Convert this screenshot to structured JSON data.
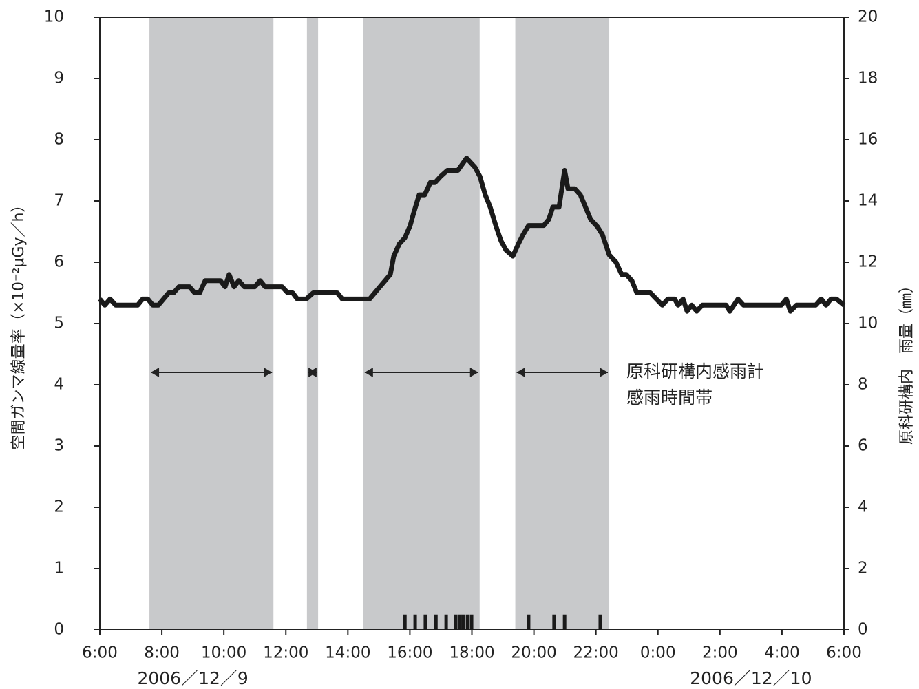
{
  "chart_data": {
    "type": "line",
    "y_label": "空間ガンマ線量率（×10⁻²μGy／h）",
    "y2_label": "原科研構内　雨量（㎜）",
    "annotation": [
      "原科研構内感雨計",
      "感雨時間帯"
    ],
    "date_labels": [
      {
        "x": 9,
        "label": "2006／12／9"
      },
      {
        "x": 27,
        "label": "2006／12／10"
      }
    ],
    "xlim": [
      6,
      30
    ],
    "xticks": [
      {
        "value": 6,
        "label": "6:00"
      },
      {
        "value": 8,
        "label": "8:00"
      },
      {
        "value": 10,
        "label": "10:00"
      },
      {
        "value": 12,
        "label": "12:00"
      },
      {
        "value": 14,
        "label": "14:00"
      },
      {
        "value": 16,
        "label": "16:00"
      },
      {
        "value": 18,
        "label": "18:00"
      },
      {
        "value": 20,
        "label": "20:00"
      },
      {
        "value": 22,
        "label": "22:00"
      },
      {
        "value": 24,
        "label": "0:00"
      },
      {
        "value": 26,
        "label": "2:00"
      },
      {
        "value": 28,
        "label": "4:00"
      },
      {
        "value": 30,
        "label": "6:00"
      }
    ],
    "ylim": [
      0,
      10
    ],
    "yticks": [
      0,
      1,
      2,
      3,
      4,
      5,
      6,
      7,
      8,
      9,
      10
    ],
    "y2lim": [
      0,
      20
    ],
    "y2ticks": [
      0,
      2,
      4,
      6,
      8,
      10,
      12,
      14,
      16,
      18,
      20
    ],
    "rain_periods": {
      "color": "#c8c9cb",
      "starts": [
        7.6,
        12.68,
        14.5,
        19.4
      ],
      "ends": [
        11.6,
        13.04,
        18.25,
        22.43
      ]
    },
    "series": [
      {
        "type": "line",
        "color": "#1a1a1a",
        "x": [
          6,
          6.16,
          6.33,
          6.51,
          7.22,
          7.38,
          7.55,
          7.71,
          7.89,
          8.22,
          8.38,
          8.55,
          8.89,
          9.06,
          9.22,
          9.4,
          9.89,
          10.04,
          10.17,
          10.33,
          10.48,
          10.66,
          11,
          11.17,
          11.33,
          11.88,
          12.06,
          12.22,
          12.37,
          12.66,
          12.88,
          13.66,
          13.82,
          14.7,
          15.37,
          15.48,
          15.66,
          15.84,
          16.01,
          16.12,
          16.3,
          16.48,
          16.66,
          16.81,
          16.99,
          17.21,
          17.55,
          17.83,
          18.1,
          18.26,
          18.43,
          18.59,
          18.77,
          18.94,
          19.1,
          19.32,
          19.5,
          19.65,
          19.83,
          20.32,
          20.48,
          20.61,
          20.81,
          20.99,
          21.1,
          21.32,
          21.5,
          21.83,
          22.05,
          22.21,
          22.43,
          22.65,
          22.83,
          22.98,
          23.16,
          23.32,
          23.76,
          24.14,
          24.32,
          24.54,
          24.65,
          24.81,
          24.94,
          25.09,
          25.25,
          25.43,
          26.2,
          26.32,
          26.58,
          26.76,
          27.98,
          28.14,
          28.27,
          28.47,
          29.09,
          29.27,
          29.42,
          29.58,
          29.76,
          30
        ],
        "values": [
          5.4,
          5.3,
          5.4,
          5.3,
          5.3,
          5.4,
          5.4,
          5.3,
          5.3,
          5.5,
          5.5,
          5.6,
          5.6,
          5.5,
          5.5,
          5.7,
          5.7,
          5.6,
          5.8,
          5.6,
          5.7,
          5.6,
          5.6,
          5.7,
          5.6,
          5.6,
          5.5,
          5.5,
          5.4,
          5.4,
          5.5,
          5.5,
          5.4,
          5.4,
          5.8,
          6.1,
          6.3,
          6.4,
          6.6,
          6.8,
          7.1,
          7.1,
          7.3,
          7.3,
          7.4,
          7.5,
          7.5,
          7.7,
          7.55,
          7.4,
          7.1,
          6.9,
          6.6,
          6.35,
          6.2,
          6.1,
          6.3,
          6.45,
          6.6,
          6.6,
          6.7,
          6.9,
          6.9,
          7.5,
          7.2,
          7.2,
          7.1,
          6.7,
          6.58,
          6.45,
          6.12,
          6.0,
          5.8,
          5.8,
          5.7,
          5.5,
          5.5,
          5.3,
          5.4,
          5.4,
          5.3,
          5.4,
          5.2,
          5.3,
          5.2,
          5.3,
          5.3,
          5.2,
          5.4,
          5.3,
          5.3,
          5.4,
          5.2,
          5.3,
          5.3,
          5.4,
          5.3,
          5.4,
          5.4,
          5.3
        ]
      },
      {
        "type": "bar",
        "axis": "y2",
        "color": "#1a1a1a",
        "x": [
          15.84,
          16.17,
          16.5,
          16.84,
          17.17,
          17.48,
          17.61,
          17.72,
          17.86,
          17.99,
          19.83,
          20.65,
          20.99,
          22.14
        ],
        "values": [
          0.5,
          0.5,
          0.5,
          0.5,
          0.5,
          0.5,
          0.5,
          0.5,
          0.5,
          0.5,
          0.5,
          0.5,
          0.5,
          0.5
        ]
      }
    ]
  }
}
